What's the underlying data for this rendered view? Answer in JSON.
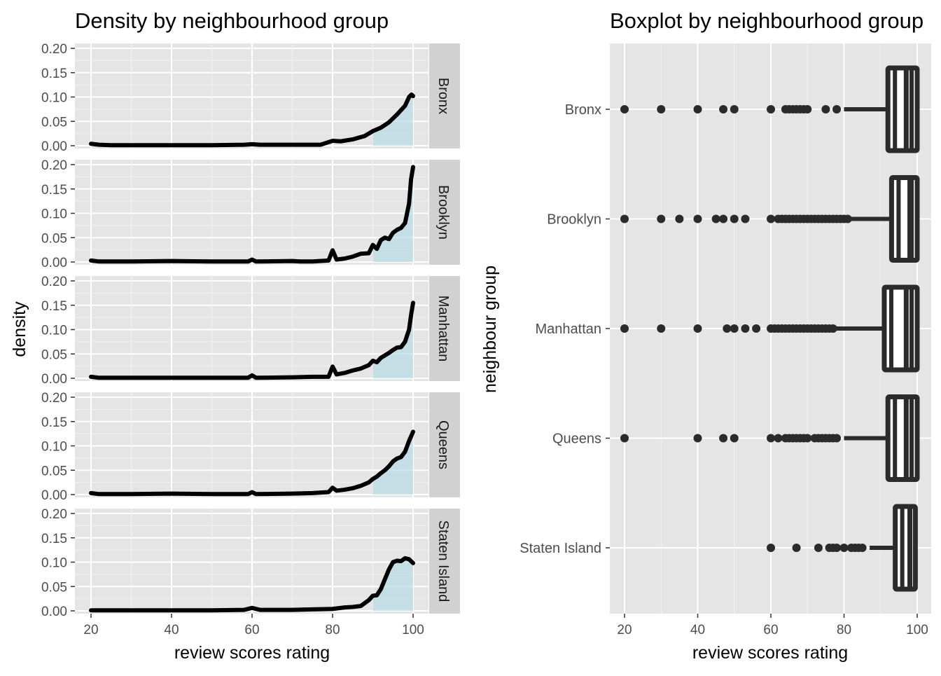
{
  "colors": {
    "panel_bg": "#e5e5e5",
    "grid_major": "#ffffff",
    "strip_bg": "#d1d1d1",
    "density_line": "#000000",
    "density_fill": "#add8e6",
    "box_color": "#2b2b2b",
    "axis_text": "#4d4d4d"
  },
  "chart_data": [
    {
      "type": "area",
      "title": "Density by neighbourhood group",
      "xlabel": "review scores rating",
      "ylabel": "density",
      "xlim": [
        20,
        100
      ],
      "ylim": [
        0,
        0.2
      ],
      "x_ticks": [
        "20",
        "40",
        "60",
        "80",
        "100"
      ],
      "y_ticks": [
        "0.00",
        "0.05",
        "0.10",
        "0.15",
        "0.20"
      ],
      "grid": true,
      "facet": "neighbourhood group (rows, strip labels on right)",
      "shaded_region": "x >= 90",
      "series": [
        {
          "name": "Bronx",
          "points": [
            [
              20,
              0.004
            ],
            [
              22,
              0.002
            ],
            [
              25,
              0.001
            ],
            [
              35,
              0.001
            ],
            [
              50,
              0.001
            ],
            [
              58,
              0.002
            ],
            [
              60,
              0.003
            ],
            [
              62,
              0.002
            ],
            [
              70,
              0.002
            ],
            [
              77,
              0.002
            ],
            [
              80,
              0.01
            ],
            [
              82,
              0.009
            ],
            [
              85,
              0.013
            ],
            [
              88,
              0.02
            ],
            [
              90,
              0.03
            ],
            [
              92,
              0.037
            ],
            [
              94,
              0.048
            ],
            [
              96,
              0.064
            ],
            [
              98,
              0.082
            ],
            [
              99,
              0.1
            ],
            [
              99.6,
              0.105
            ],
            [
              100,
              0.102
            ]
          ]
        },
        {
          "name": "Brooklyn",
          "points": [
            [
              20,
              0.003
            ],
            [
              22,
              0.001
            ],
            [
              30,
              0.001
            ],
            [
              40,
              0.002
            ],
            [
              50,
              0.001
            ],
            [
              59,
              0.001
            ],
            [
              60,
              0.005
            ],
            [
              61,
              0.001
            ],
            [
              70,
              0.002
            ],
            [
              72,
              0.001
            ],
            [
              75,
              0.001
            ],
            [
              79,
              0.003
            ],
            [
              80,
              0.024
            ],
            [
              81,
              0.005
            ],
            [
              83,
              0.007
            ],
            [
              85,
              0.011
            ],
            [
              87,
              0.017
            ],
            [
              89,
              0.018
            ],
            [
              90,
              0.035
            ],
            [
              91,
              0.027
            ],
            [
              92,
              0.045
            ],
            [
              93,
              0.05
            ],
            [
              94,
              0.047
            ],
            [
              95,
              0.06
            ],
            [
              96,
              0.066
            ],
            [
              97,
              0.07
            ],
            [
              98,
              0.08
            ],
            [
              99,
              0.12
            ],
            [
              99.5,
              0.17
            ],
            [
              100,
              0.195
            ]
          ]
        },
        {
          "name": "Manhattan",
          "points": [
            [
              20,
              0.003
            ],
            [
              22,
              0.001
            ],
            [
              30,
              0.001
            ],
            [
              40,
              0.001
            ],
            [
              50,
              0.001
            ],
            [
              59,
              0.001
            ],
            [
              60,
              0.006
            ],
            [
              61,
              0.001
            ],
            [
              70,
              0.002
            ],
            [
              75,
              0.003
            ],
            [
              79,
              0.003
            ],
            [
              80,
              0.024
            ],
            [
              81,
              0.008
            ],
            [
              83,
              0.011
            ],
            [
              85,
              0.016
            ],
            [
              87,
              0.02
            ],
            [
              89,
              0.027
            ],
            [
              90,
              0.036
            ],
            [
              91,
              0.033
            ],
            [
              92,
              0.042
            ],
            [
              93,
              0.047
            ],
            [
              94,
              0.052
            ],
            [
              95,
              0.058
            ],
            [
              96,
              0.063
            ],
            [
              97,
              0.064
            ],
            [
              98,
              0.075
            ],
            [
              99,
              0.1
            ],
            [
              99.5,
              0.13
            ],
            [
              100,
              0.155
            ]
          ]
        },
        {
          "name": "Queens",
          "points": [
            [
              20,
              0.003
            ],
            [
              22,
              0.001
            ],
            [
              30,
              0.001
            ],
            [
              40,
              0.002
            ],
            [
              50,
              0.001
            ],
            [
              59,
              0.001
            ],
            [
              60,
              0.005
            ],
            [
              61,
              0.001
            ],
            [
              70,
              0.002
            ],
            [
              75,
              0.003
            ],
            [
              79,
              0.005
            ],
            [
              80,
              0.014
            ],
            [
              81,
              0.008
            ],
            [
              83,
              0.01
            ],
            [
              85,
              0.013
            ],
            [
              87,
              0.018
            ],
            [
              89,
              0.025
            ],
            [
              90,
              0.032
            ],
            [
              91,
              0.037
            ],
            [
              92,
              0.044
            ],
            [
              93,
              0.05
            ],
            [
              94,
              0.058
            ],
            [
              95,
              0.068
            ],
            [
              96,
              0.074
            ],
            [
              97,
              0.077
            ],
            [
              98,
              0.088
            ],
            [
              99,
              0.11
            ],
            [
              100,
              0.129
            ]
          ]
        },
        {
          "name": "Staten Island",
          "points": [
            [
              20,
              0.001
            ],
            [
              30,
              0.001
            ],
            [
              40,
              0.001
            ],
            [
              50,
              0.001
            ],
            [
              58,
              0.002
            ],
            [
              60,
              0.006
            ],
            [
              62,
              0.002
            ],
            [
              70,
              0.002
            ],
            [
              75,
              0.003
            ],
            [
              80,
              0.004
            ],
            [
              83,
              0.007
            ],
            [
              85,
              0.008
            ],
            [
              87,
              0.01
            ],
            [
              89,
              0.022
            ],
            [
              90,
              0.031
            ],
            [
              91,
              0.032
            ],
            [
              92,
              0.045
            ],
            [
              93,
              0.065
            ],
            [
              94,
              0.085
            ],
            [
              95,
              0.1
            ],
            [
              96,
              0.103
            ],
            [
              97,
              0.102
            ],
            [
              98,
              0.108
            ],
            [
              99,
              0.106
            ],
            [
              100,
              0.098
            ]
          ]
        }
      ]
    },
    {
      "type": "boxplot",
      "title": "Boxplot by neighbourhood group",
      "xlabel": "review scores rating",
      "ylabel": "neighbour group",
      "xlim": [
        16,
        104
      ],
      "x_ticks": [
        "20",
        "40",
        "60",
        "80",
        "100"
      ],
      "grid": true,
      "categories": [
        "Bronx",
        "Brooklyn",
        "Manhattan",
        "Queens",
        "Staten Island"
      ],
      "boxes": [
        {
          "name": "Bronx",
          "whisker_low": 80,
          "q1": 92,
          "median": 97,
          "q3": 100,
          "whisker_high": 100,
          "outliers": [
            20,
            30,
            40,
            47,
            50,
            60,
            64,
            65,
            66,
            67,
            68,
            69,
            70,
            75,
            78
          ]
        },
        {
          "name": "Brooklyn",
          "whisker_low": 82,
          "q1": 93,
          "median": 98,
          "q3": 100,
          "whisker_high": 100,
          "outliers": [
            20,
            30,
            35,
            40,
            45,
            47,
            50,
            53,
            60,
            62,
            63,
            64,
            65,
            66,
            67,
            68,
            69,
            70,
            71,
            72,
            73,
            74,
            75,
            76,
            77,
            78,
            79,
            80,
            81
          ]
        },
        {
          "name": "Manhattan",
          "whisker_low": 78,
          "q1": 91,
          "median": 97,
          "q3": 100,
          "whisker_high": 100,
          "outliers": [
            20,
            30,
            40,
            48,
            50,
            53,
            56,
            60,
            61,
            62,
            63,
            64,
            65,
            66,
            67,
            68,
            69,
            70,
            71,
            72,
            73,
            74,
            75,
            76,
            77
          ]
        },
        {
          "name": "Queens",
          "whisker_low": 80,
          "q1": 92,
          "median": 97,
          "q3": 100,
          "whisker_high": 100,
          "outliers": [
            20,
            40,
            47,
            50,
            60,
            62,
            64,
            65,
            66,
            67,
            68,
            69,
            70,
            72,
            73,
            74,
            75,
            76,
            77,
            78
          ]
        },
        {
          "name": "Staten Island",
          "whisker_low": 87,
          "q1": 94,
          "median": 98,
          "q3": 99.5,
          "whisker_high": 100,
          "outliers": [
            60,
            67,
            73,
            76,
            77,
            78,
            80,
            82,
            83,
            84,
            85
          ]
        }
      ]
    }
  ]
}
